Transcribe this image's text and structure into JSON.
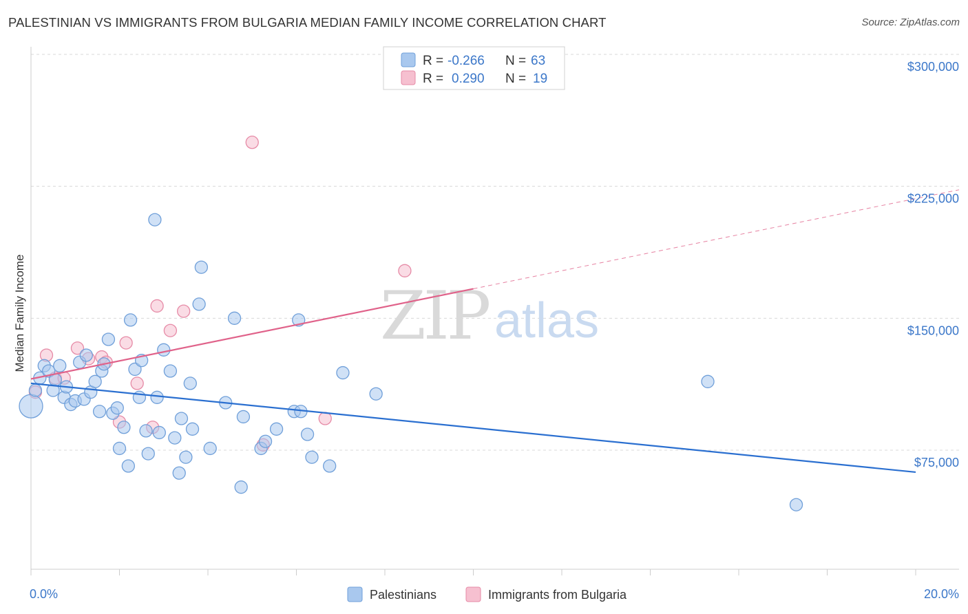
{
  "header": {
    "title": "PALESTINIAN VS IMMIGRANTS FROM BULGARIA MEDIAN FAMILY INCOME CORRELATION CHART",
    "source": "Source: ZipAtlas.com"
  },
  "watermark": {
    "zip": "ZIP",
    "atlas": "atlas"
  },
  "colors": {
    "blue_fill": "#a9c8ee",
    "blue_stroke": "#6f9fd9",
    "blue_line": "#2a6fd0",
    "pink_fill": "#f6c0d0",
    "pink_stroke": "#e68aa6",
    "pink_line": "#e0628a",
    "grid": "#d8d8d8",
    "axis_text": "#3b77c9"
  },
  "legend": {
    "rows": [
      {
        "r_label": "R = ",
        "r_value": "-0.266",
        "n_label": "N = ",
        "n_value": "63",
        "series": "Palestinians"
      },
      {
        "r_label": "R = ",
        "r_value": "0.290",
        "n_label": "N = ",
        "n_value": "19",
        "series": "Immigrants from Bulgaria"
      }
    ]
  },
  "bottom_legend": {
    "items": [
      "Palestinians",
      "Immigrants from Bulgaria"
    ]
  },
  "chart_data": {
    "type": "scatter",
    "title": "PALESTINIAN VS IMMIGRANTS FROM BULGARIA MEDIAN FAMILY INCOME CORRELATION CHART",
    "xlabel": "",
    "ylabel": "Median Family Income",
    "xlim": [
      0,
      20
    ],
    "ylim": [
      10000,
      312000
    ],
    "x_tick_labels": [
      "0.0%",
      "20.0%"
    ],
    "y_ticks": [
      75000,
      150000,
      225000,
      300000
    ],
    "y_tick_labels": [
      "$75,000",
      "$150,000",
      "$225,000",
      "$300,000"
    ],
    "grid": true,
    "legend_position": "top-center",
    "series": [
      {
        "name": "Palestinians",
        "color": "#a9c8ee",
        "points": [
          [
            0.0,
            100000
          ],
          [
            0.1,
            109000
          ],
          [
            0.2,
            116000
          ],
          [
            0.3,
            123000
          ],
          [
            0.4,
            120000
          ],
          [
            0.5,
            109000
          ],
          [
            0.55,
            115000
          ],
          [
            0.65,
            123000
          ],
          [
            0.75,
            105000
          ],
          [
            0.8,
            111000
          ],
          [
            0.9,
            101000
          ],
          [
            1.0,
            103000
          ],
          [
            1.1,
            125000
          ],
          [
            1.2,
            104000
          ],
          [
            1.25,
            129000
          ],
          [
            1.35,
            108000
          ],
          [
            1.45,
            114000
          ],
          [
            1.55,
            97000
          ],
          [
            1.6,
            120000
          ],
          [
            1.65,
            124000
          ],
          [
            1.75,
            138000
          ],
          [
            1.85,
            96000
          ],
          [
            1.95,
            99000
          ],
          [
            2.0,
            76000
          ],
          [
            2.1,
            88000
          ],
          [
            2.2,
            66000
          ],
          [
            2.25,
            149000
          ],
          [
            2.35,
            121000
          ],
          [
            2.45,
            105000
          ],
          [
            2.5,
            126000
          ],
          [
            2.6,
            86000
          ],
          [
            2.65,
            73000
          ],
          [
            2.8,
            206000
          ],
          [
            2.85,
            105000
          ],
          [
            2.9,
            85000
          ],
          [
            3.0,
            132000
          ],
          [
            3.15,
            120000
          ],
          [
            3.25,
            82000
          ],
          [
            3.35,
            62000
          ],
          [
            3.4,
            93000
          ],
          [
            3.5,
            71000
          ],
          [
            3.6,
            113000
          ],
          [
            3.65,
            87000
          ],
          [
            3.8,
            158000
          ],
          [
            3.85,
            179000
          ],
          [
            4.05,
            76000
          ],
          [
            4.4,
            102000
          ],
          [
            4.6,
            150000
          ],
          [
            4.75,
            54000
          ],
          [
            4.8,
            94000
          ],
          [
            5.2,
            76000
          ],
          [
            5.3,
            80000
          ],
          [
            5.55,
            87000
          ],
          [
            5.95,
            97000
          ],
          [
            6.05,
            149000
          ],
          [
            6.1,
            97000
          ],
          [
            6.25,
            84000
          ],
          [
            6.35,
            71000
          ],
          [
            6.75,
            66000
          ],
          [
            7.05,
            119000
          ],
          [
            7.8,
            107000
          ],
          [
            15.3,
            114000
          ],
          [
            17.3,
            44000
          ]
        ],
        "trend": {
          "x": [
            0,
            20
          ],
          "y": [
            113000,
            62500
          ]
        }
      },
      {
        "name": "Immigrants from Bulgaria",
        "color": "#f6c0d0",
        "points": [
          [
            0.1,
            108000
          ],
          [
            0.35,
            129000
          ],
          [
            0.55,
            116000
          ],
          [
            0.75,
            116000
          ],
          [
            1.05,
            133000
          ],
          [
            1.3,
            127000
          ],
          [
            1.6,
            128000
          ],
          [
            1.7,
            125000
          ],
          [
            2.0,
            91000
          ],
          [
            2.15,
            136000
          ],
          [
            2.4,
            113000
          ],
          [
            2.75,
            88000
          ],
          [
            2.85,
            157000
          ],
          [
            3.15,
            143000
          ],
          [
            3.45,
            154000
          ],
          [
            5.25,
            78000
          ],
          [
            5.0,
            250000
          ],
          [
            6.65,
            93000
          ],
          [
            8.45,
            177000
          ]
        ],
        "trend": {
          "x": [
            0,
            20
          ],
          "y": [
            115500,
            218000
          ]
        },
        "trend_solid_until_x": 10
      }
    ]
  }
}
